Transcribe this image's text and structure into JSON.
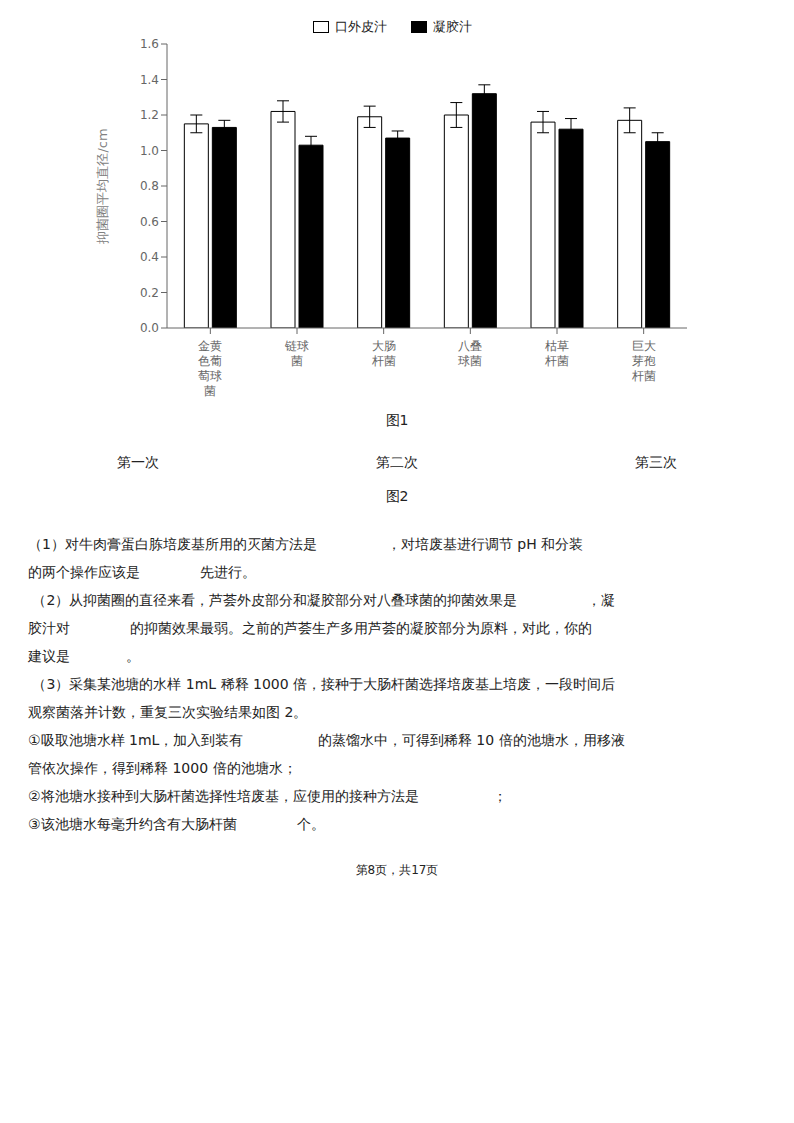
{
  "chart_data": {
    "type": "bar",
    "categories": [
      "金黄\n色葡\n萄球\n菌",
      "链球\n菌",
      "大肠\n杆菌",
      "八叠\n球菌",
      "枯草\n杆菌",
      "巨大\n芽孢\n杆菌"
    ],
    "series": [
      {
        "name": "口外皮汁",
        "color": "#ffffff",
        "values": [
          1.15,
          1.22,
          1.19,
          1.2,
          1.16,
          1.17
        ],
        "errors": [
          0.05,
          0.06,
          0.06,
          0.07,
          0.06,
          0.07
        ]
      },
      {
        "name": "凝胶汁",
        "color": "#000000",
        "values": [
          1.13,
          1.03,
          1.07,
          1.32,
          1.12,
          1.05
        ],
        "errors": [
          0.04,
          0.05,
          0.04,
          0.05,
          0.06,
          0.05
        ]
      }
    ],
    "y_label": "抑菌圈平均直径/cm",
    "ylim": [
      0,
      1.6
    ],
    "yticks": [
      {
        "value": 0,
        "label": "0.0"
      },
      0.2,
      0.4,
      0.6,
      0.8,
      {
        "value": 1.0,
        "label": "1.0"
      },
      1.2,
      1.4,
      1.6
    ],
    "legend": "top",
    "grid": false,
    "annotations": [
      "图1",
      "第一次",
      "第二次",
      "第三次",
      "图2",
      "（1）对牛肉膏蛋白胨培废基所用的灭菌方法是　　　　　，对培废基进行调节 pH 和分装",
      "的两个操作应该是　　　　 先进行。",
      " （2）从抑菌圈的直径来看，芦荟外皮部分和凝胶部分对八叠球菌的抑菌效果是　　　　　，凝",
      "胶汁对　　　　 的抑菌效果最弱。之前的芦荟生产多用芦荟的凝胶部分为原料，对此，你的",
      "建议是　　　　。",
      " （3）采集某池塘的水样 1mL 稀释 1000 倍，接种于大肠杆菌选择培废基上培废，一段时间后",
      "观察菌落并计数，重复三次实验结果如图 2。",
      "①吸取池塘水样 1mL，加入到装有　　　　　 的蒸馏水中，可得到稀释 10 倍的池塘水，用移液",
      "管依次操作，得到稀释 1000 倍的池塘水；",
      "②将池塘水接种到大肠杆菌选择性培废基，应使用的接种方法是　　　　　 ；",
      "③该池塘水每毫升约含有大肠杆菌　　　　 个。",
      "第8页，共17页"
    ]
  }
}
